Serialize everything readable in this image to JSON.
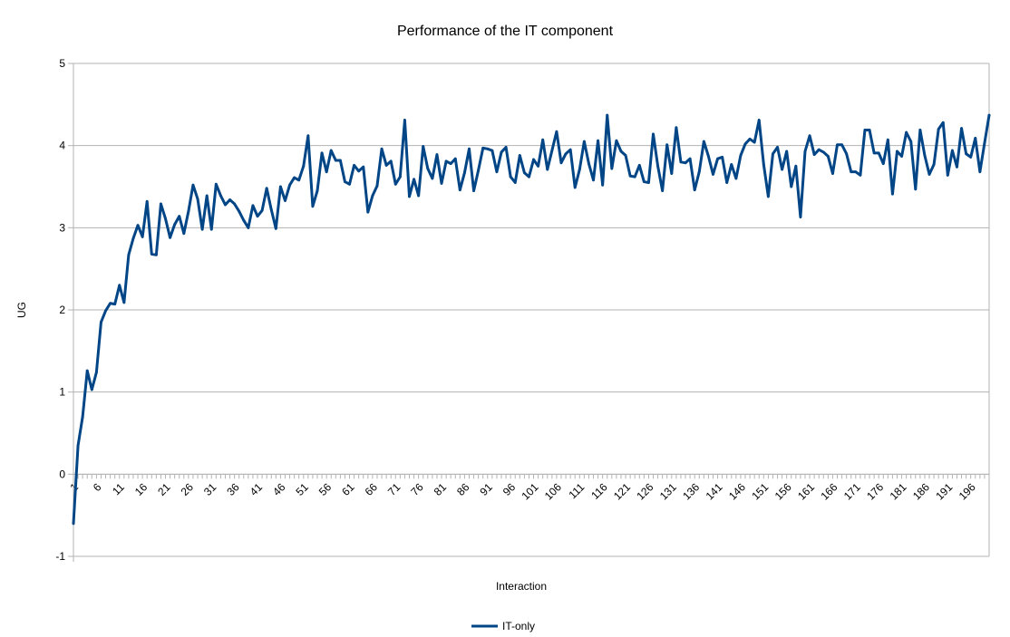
{
  "chart_data": {
    "type": "line",
    "title": "Performance of the IT component",
    "xlabel": "Interaction",
    "ylabel": "UG",
    "ylim": [
      -1,
      5
    ],
    "yticks": [
      "5",
      "4",
      "3",
      "2",
      "1",
      "0",
      "-1"
    ],
    "grid": true,
    "legend": "bottom",
    "xlim": [
      1,
      200
    ],
    "xtick_labels": [
      "1",
      "6",
      "11",
      "16",
      "21",
      "26",
      "31",
      "36",
      "41",
      "46",
      "51",
      "56",
      "61",
      "66",
      "71",
      "76",
      "81",
      "86",
      "91",
      "96",
      "101",
      "106",
      "111",
      "116",
      "121",
      "126",
      "131",
      "136",
      "141",
      "146",
      "151",
      "156",
      "161",
      "166",
      "171",
      "176",
      "181",
      "186",
      "191",
      "196"
    ],
    "series": [
      {
        "name": "IT-only",
        "color": "#004586",
        "values": [
          -0.6,
          0.35,
          0.7,
          1.26,
          1.03,
          1.24,
          1.85,
          1.99,
          2.08,
          2.07,
          2.3,
          2.09,
          2.67,
          2.87,
          3.03,
          2.89,
          3.32,
          2.68,
          2.67,
          3.29,
          3.11,
          2.88,
          3.04,
          3.14,
          2.93,
          3.2,
          3.52,
          3.35,
          2.98,
          3.39,
          2.98,
          3.53,
          3.39,
          3.28,
          3.34,
          3.29,
          3.2,
          3.09,
          3.0,
          3.27,
          3.14,
          3.21,
          3.48,
          3.22,
          2.99,
          3.5,
          3.33,
          3.52,
          3.61,
          3.58,
          3.75,
          4.12,
          3.26,
          3.45,
          3.91,
          3.68,
          3.94,
          3.82,
          3.82,
          3.56,
          3.53,
          3.76,
          3.69,
          3.74,
          3.19,
          3.39,
          3.51,
          3.96,
          3.76,
          3.81,
          3.53,
          3.62,
          4.31,
          3.38,
          3.59,
          3.39,
          3.99,
          3.72,
          3.6,
          3.89,
          3.54,
          3.81,
          3.78,
          3.84,
          3.46,
          3.67,
          3.96,
          3.45,
          3.7,
          3.97,
          3.96,
          3.94,
          3.68,
          3.92,
          3.98,
          3.62,
          3.55,
          3.88,
          3.67,
          3.62,
          3.83,
          3.75,
          4.07,
          3.71,
          3.94,
          4.17,
          3.79,
          3.9,
          3.95,
          3.49,
          3.71,
          4.05,
          3.78,
          3.58,
          4.06,
          3.52,
          4.37,
          3.72,
          4.06,
          3.93,
          3.88,
          3.63,
          3.62,
          3.76,
          3.56,
          3.55,
          4.14,
          3.75,
          3.45,
          4.01,
          3.66,
          4.22,
          3.8,
          3.79,
          3.84,
          3.46,
          3.68,
          4.05,
          3.87,
          3.65,
          3.84,
          3.86,
          3.55,
          3.77,
          3.6,
          3.88,
          4.02,
          4.08,
          4.04,
          4.31,
          3.77,
          3.38,
          3.9,
          3.98,
          3.71,
          3.93,
          3.5,
          3.75,
          3.13,
          3.93,
          4.12,
          3.89,
          3.95,
          3.92,
          3.87,
          3.66,
          4.01,
          4.01,
          3.9,
          3.68,
          3.68,
          3.64,
          4.19,
          4.19,
          3.91,
          3.91,
          3.78,
          4.07,
          3.41,
          3.93,
          3.87,
          4.16,
          4.05,
          3.47,
          4.19,
          3.88,
          3.65,
          3.77,
          4.2,
          4.28,
          3.64,
          3.94,
          3.74,
          4.21,
          3.9,
          3.86,
          4.09,
          3.68,
          4.03,
          4.37
        ]
      }
    ]
  }
}
